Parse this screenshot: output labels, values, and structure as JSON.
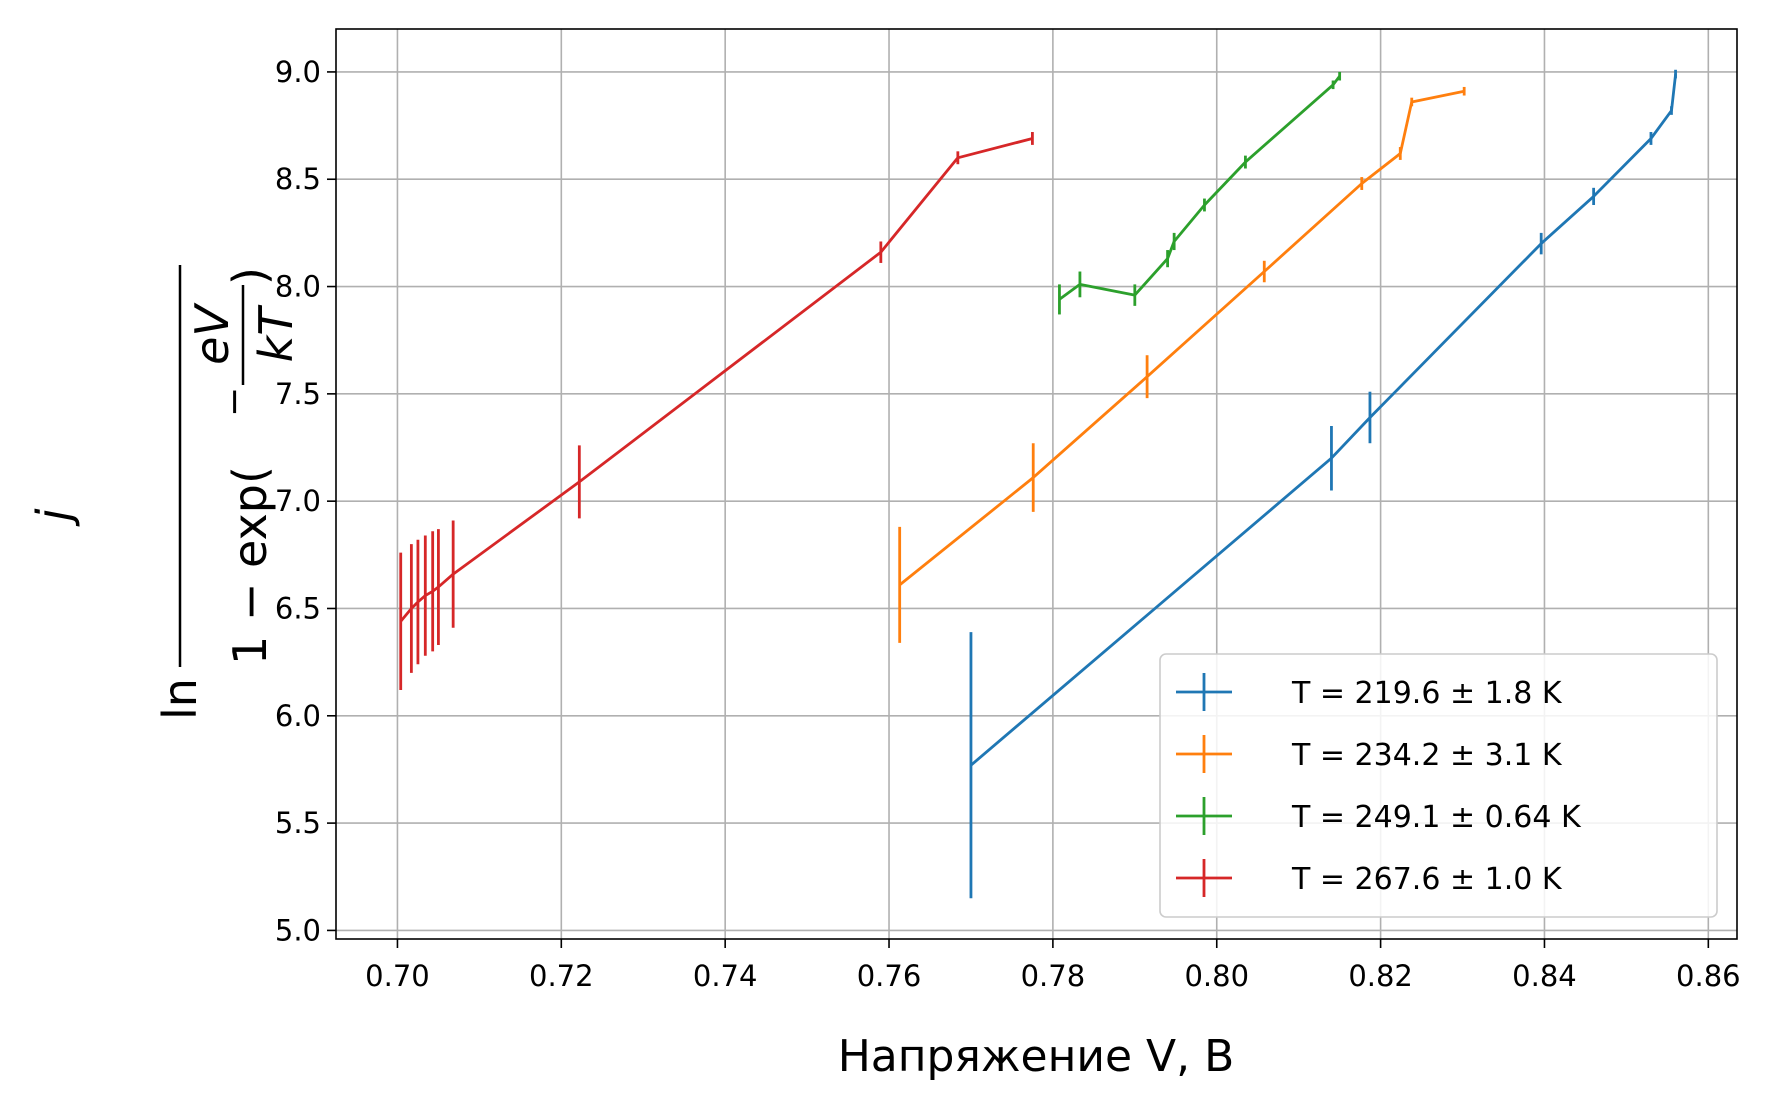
{
  "chart_data": {
    "type": "line",
    "title": "",
    "xlabel": "Напряжение V, В",
    "ylabel": {
      "ln": "ln",
      "numerator": "j",
      "denominator_prefix": "1 − exp(",
      "minus": "−",
      "inner_numerator": "eV",
      "inner_denominator": "kT",
      "denominator_suffix": ")"
    },
    "xlim": [
      0.6925,
      0.8635
    ],
    "ylim": [
      4.96,
      9.2
    ],
    "xticks": [
      0.7,
      0.72,
      0.74,
      0.76,
      0.78,
      0.8,
      0.82,
      0.84,
      0.86
    ],
    "xtick_labels": [
      "0.70",
      "0.72",
      "0.74",
      "0.76",
      "0.78",
      "0.80",
      "0.82",
      "0.84",
      "0.86"
    ],
    "yticks": [
      5.0,
      5.5,
      6.0,
      6.5,
      7.0,
      7.5,
      8.0,
      8.5,
      9.0
    ],
    "ytick_labels": [
      "5.0",
      "5.5",
      "6.0",
      "6.5",
      "7.0",
      "7.5",
      "8.0",
      "8.5",
      "9.0"
    ],
    "grid": true,
    "legend_position": "lower-right",
    "series": [
      {
        "name": "T = 219.6 ± 1.8 K",
        "color": "#1f77b4",
        "points": [
          {
            "x": 0.77,
            "y": 5.77,
            "err": 0.62
          },
          {
            "x": 0.814,
            "y": 7.2,
            "err": 0.15
          },
          {
            "x": 0.8187,
            "y": 7.39,
            "err": 0.12
          },
          {
            "x": 0.8396,
            "y": 8.2,
            "err": 0.05
          },
          {
            "x": 0.846,
            "y": 8.42,
            "err": 0.04
          },
          {
            "x": 0.853,
            "y": 8.69,
            "err": 0.03
          },
          {
            "x": 0.8555,
            "y": 8.82,
            "err": 0.02
          },
          {
            "x": 0.856,
            "y": 8.99,
            "err": 0.02
          }
        ]
      },
      {
        "name": "T = 234.2 ± 3.1 K",
        "color": "#ff7f0e",
        "points": [
          {
            "x": 0.7613,
            "y": 6.61,
            "err": 0.27
          },
          {
            "x": 0.7776,
            "y": 7.11,
            "err": 0.16
          },
          {
            "x": 0.7915,
            "y": 7.58,
            "err": 0.1
          },
          {
            "x": 0.8058,
            "y": 8.07,
            "err": 0.05
          },
          {
            "x": 0.8177,
            "y": 8.48,
            "err": 0.03
          },
          {
            "x": 0.8224,
            "y": 8.62,
            "err": 0.03
          },
          {
            "x": 0.8238,
            "y": 8.86,
            "err": 0.02
          },
          {
            "x": 0.8302,
            "y": 8.91,
            "err": 0.02
          }
        ]
      },
      {
        "name": "T = 249.1 ± 0.64 K",
        "color": "#2ca02c",
        "points": [
          {
            "x": 0.7808,
            "y": 7.94,
            "err": 0.07
          },
          {
            "x": 0.7833,
            "y": 8.01,
            "err": 0.06
          },
          {
            "x": 0.79,
            "y": 7.96,
            "err": 0.05
          },
          {
            "x": 0.794,
            "y": 8.13,
            "err": 0.04
          },
          {
            "x": 0.7948,
            "y": 8.21,
            "err": 0.04
          },
          {
            "x": 0.7985,
            "y": 8.38,
            "err": 0.03
          },
          {
            "x": 0.8035,
            "y": 8.58,
            "err": 0.03
          },
          {
            "x": 0.8142,
            "y": 8.94,
            "err": 0.02
          },
          {
            "x": 0.815,
            "y": 8.98,
            "err": 0.02
          }
        ]
      },
      {
        "name": "T = 267.6 ± 1.0 K",
        "color": "#d62728",
        "points": [
          {
            "x": 0.7004,
            "y": 6.44,
            "err": 0.32
          },
          {
            "x": 0.7017,
            "y": 6.5,
            "err": 0.3
          },
          {
            "x": 0.7025,
            "y": 6.53,
            "err": 0.29
          },
          {
            "x": 0.7034,
            "y": 6.56,
            "err": 0.28
          },
          {
            "x": 0.7043,
            "y": 6.58,
            "err": 0.28
          },
          {
            "x": 0.705,
            "y": 6.6,
            "err": 0.27
          },
          {
            "x": 0.7068,
            "y": 6.66,
            "err": 0.25
          },
          {
            "x": 0.7222,
            "y": 7.09,
            "err": 0.17
          },
          {
            "x": 0.759,
            "y": 8.16,
            "err": 0.05
          },
          {
            "x": 0.7684,
            "y": 8.6,
            "err": 0.03
          },
          {
            "x": 0.7775,
            "y": 8.69,
            "err": 0.03
          }
        ]
      }
    ]
  }
}
